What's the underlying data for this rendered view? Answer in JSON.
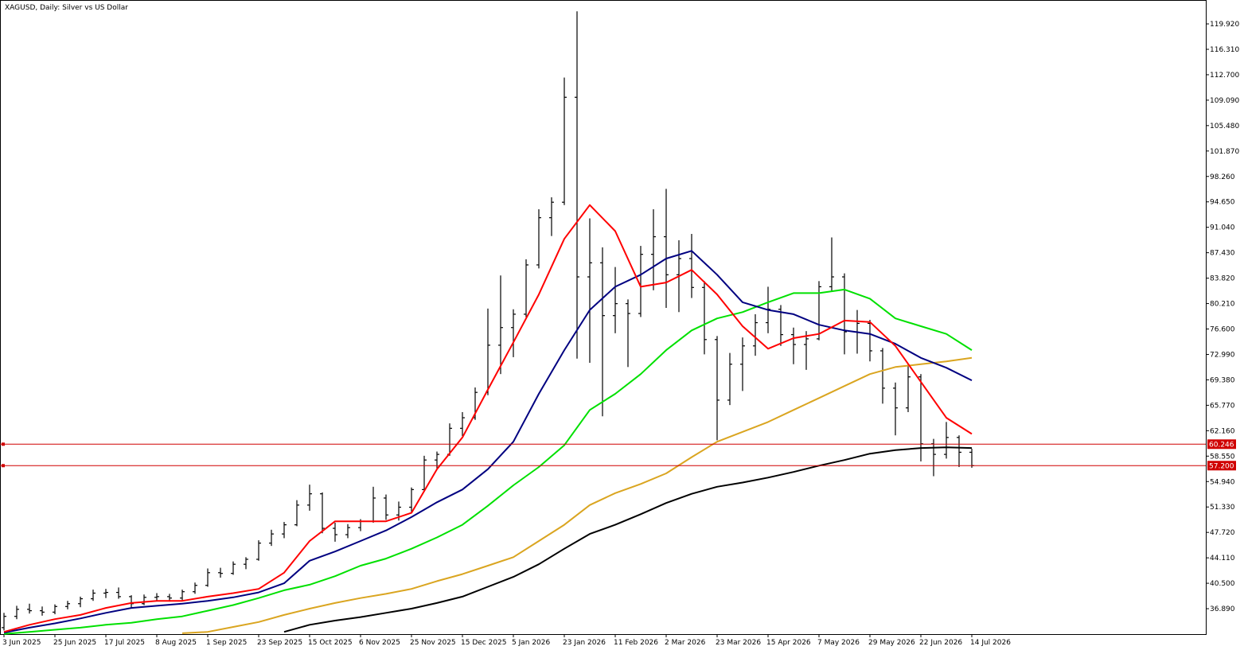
{
  "chart_data": {
    "type": "ohlc",
    "title": "XAGUSD, Daily:  Silver vs US Dollar",
    "color": "#000000",
    "ylim": [
      33.28,
      122.86
    ],
    "xlim": [
      -0.3125,
      94.375
    ],
    "yticks": [
      {
        "value": 36.89,
        "label": "36.890"
      },
      {
        "value": 40.5,
        "label": "40.500"
      },
      {
        "value": 44.11,
        "label": "44.110"
      },
      {
        "value": 47.72,
        "label": "47.720"
      },
      {
        "value": 51.33,
        "label": "51.330"
      },
      {
        "value": 54.94,
        "label": "54.940"
      },
      {
        "value": 58.55,
        "label": "58.550"
      },
      {
        "value": 62.16,
        "label": "62.160"
      },
      {
        "value": 65.77,
        "label": "65.770"
      },
      {
        "value": 69.38,
        "label": "69.380"
      },
      {
        "value": 72.99,
        "label": "72.990"
      },
      {
        "value": 76.6,
        "label": "76.600"
      },
      {
        "value": 80.21,
        "label": "80.210"
      },
      {
        "value": 83.82,
        "label": "83.820"
      },
      {
        "value": 87.43,
        "label": "87.430"
      },
      {
        "value": 91.04,
        "label": "91.040"
      },
      {
        "value": 94.65,
        "label": "94.650"
      },
      {
        "value": 98.26,
        "label": "98.260"
      },
      {
        "value": 101.87,
        "label": "101.870"
      },
      {
        "value": 105.48,
        "label": "105.480"
      },
      {
        "value": 109.09,
        "label": "109.090"
      },
      {
        "value": 112.7,
        "label": "112.700"
      },
      {
        "value": 116.31,
        "label": "116.310"
      },
      {
        "value": 119.92,
        "label": "119.920"
      }
    ],
    "xticks": [
      {
        "value": 0,
        "label": "3 Jun 2025"
      },
      {
        "value": 4,
        "label": "25 Jun 2025"
      },
      {
        "value": 8,
        "label": "17 Jul 2025"
      },
      {
        "value": 12,
        "label": "8 Aug 2025"
      },
      {
        "value": 16,
        "label": "1 Sep 2025"
      },
      {
        "value": 20,
        "label": "23 Sep 2025"
      },
      {
        "value": 24,
        "label": "15 Oct 2025"
      },
      {
        "value": 28,
        "label": "6 Nov 2025"
      },
      {
        "value": 32,
        "label": "25 Nov 2025"
      },
      {
        "value": 36,
        "label": "15 Dec 2025"
      },
      {
        "value": 40,
        "label": "5 Jan 2026"
      },
      {
        "value": 44,
        "label": "23 Jan 2026"
      },
      {
        "value": 48,
        "label": "11 Feb 2026"
      },
      {
        "value": 52,
        "label": "2 Mar 2026"
      },
      {
        "value": 56,
        "label": "23 Mar 2026"
      },
      {
        "value": 60,
        "label": "15 Apr 2026"
      },
      {
        "value": 64,
        "label": "7 May 2026"
      },
      {
        "value": 68,
        "label": "29 May 2026"
      },
      {
        "value": 72,
        "label": "22 Jun 2026"
      },
      {
        "value": 76,
        "label": "14 Jul 2026"
      }
    ],
    "ohlc": [
      [
        34.2,
        36.3,
        33.8,
        35.8
      ],
      [
        35.8,
        37.3,
        35.4,
        36.8
      ],
      [
        36.8,
        37.6,
        36.2,
        36.6
      ],
      [
        36.6,
        37.2,
        35.9,
        36.4
      ],
      [
        36.4,
        37.5,
        36.1,
        37.2
      ],
      [
        37.2,
        38.0,
        36.8,
        37.6
      ],
      [
        37.6,
        38.6,
        37.1,
        38.3
      ],
      [
        38.3,
        39.6,
        38.0,
        39.1
      ],
      [
        39.1,
        39.7,
        38.4,
        39.2
      ],
      [
        39.2,
        39.9,
        38.3,
        38.6
      ],
      [
        38.6,
        38.8,
        37.0,
        37.6
      ],
      [
        37.6,
        38.9,
        37.4,
        38.5
      ],
      [
        38.5,
        39.1,
        38.0,
        38.6
      ],
      [
        38.6,
        39.0,
        37.9,
        38.4
      ],
      [
        38.4,
        39.6,
        38.1,
        39.3
      ],
      [
        39.3,
        40.6,
        39.0,
        40.2
      ],
      [
        40.2,
        42.6,
        40.0,
        42.0
      ],
      [
        42.0,
        42.7,
        41.3,
        41.9
      ],
      [
        41.9,
        43.6,
        41.7,
        43.2
      ],
      [
        43.2,
        44.2,
        42.5,
        43.9
      ],
      [
        43.9,
        46.6,
        43.7,
        46.2
      ],
      [
        46.2,
        48.1,
        45.8,
        47.5
      ],
      [
        47.5,
        49.2,
        46.9,
        48.8
      ],
      [
        48.8,
        52.3,
        48.6,
        51.6
      ],
      [
        51.6,
        54.5,
        50.8,
        53.2
      ],
      [
        53.2,
        53.4,
        47.6,
        48.3
      ],
      [
        48.3,
        49.1,
        46.4,
        47.4
      ],
      [
        47.4,
        48.9,
        46.9,
        48.4
      ],
      [
        48.4,
        49.6,
        47.9,
        49.3
      ],
      [
        49.3,
        54.2,
        49.1,
        52.6
      ],
      [
        52.6,
        53.1,
        49.5,
        50.2
      ],
      [
        50.2,
        52.1,
        49.4,
        51.3
      ],
      [
        51.3,
        54.1,
        50.6,
        53.8
      ],
      [
        53.8,
        58.6,
        53.5,
        58.0
      ],
      [
        58.0,
        59.2,
        56.8,
        58.8
      ],
      [
        58.8,
        63.2,
        58.6,
        62.5
      ],
      [
        62.5,
        64.8,
        61.4,
        64.0
      ],
      [
        64.0,
        68.3,
        63.7,
        67.6
      ],
      [
        67.6,
        79.5,
        67.2,
        74.3
      ],
      [
        74.3,
        84.2,
        70.2,
        76.8
      ],
      [
        76.8,
        79.4,
        72.6,
        78.7
      ],
      [
        78.7,
        86.5,
        78.3,
        85.7
      ],
      [
        85.7,
        93.6,
        85.2,
        92.4
      ],
      [
        92.4,
        95.3,
        89.8,
        94.6
      ],
      [
        94.6,
        112.3,
        94.2,
        109.5
      ],
      [
        109.5,
        121.7,
        72.4,
        84.0
      ],
      [
        84.0,
        92.3,
        71.8,
        86.0
      ],
      [
        86.0,
        88.2,
        64.2,
        78.5
      ],
      [
        78.5,
        85.4,
        76.0,
        80.2
      ],
      [
        80.2,
        80.8,
        71.2,
        78.8
      ],
      [
        78.8,
        88.4,
        78.3,
        87.2
      ],
      [
        87.2,
        93.6,
        82.1,
        89.7
      ],
      [
        89.7,
        96.5,
        79.6,
        84.3
      ],
      [
        84.3,
        89.2,
        79.0,
        86.6
      ],
      [
        86.6,
        90.1,
        81.0,
        82.5
      ],
      [
        82.5,
        83.4,
        73.0,
        75.1
      ],
      [
        75.1,
        75.6,
        60.8,
        66.5
      ],
      [
        66.5,
        73.2,
        65.8,
        71.6
      ],
      [
        71.6,
        75.4,
        67.8,
        74.2
      ],
      [
        74.2,
        78.7,
        72.8,
        77.5
      ],
      [
        77.5,
        82.6,
        76.0,
        79.4
      ],
      [
        79.4,
        80.0,
        74.2,
        75.8
      ],
      [
        75.8,
        76.8,
        71.6,
        74.4
      ],
      [
        74.4,
        76.3,
        70.8,
        75.2
      ],
      [
        75.2,
        83.4,
        75.0,
        82.6
      ],
      [
        82.6,
        89.6,
        81.9,
        84.0
      ],
      [
        84.0,
        84.5,
        73.0,
        76.2
      ],
      [
        76.2,
        79.3,
        73.1,
        77.4
      ],
      [
        77.4,
        77.9,
        72.0,
        73.5
      ],
      [
        73.5,
        73.9,
        66.0,
        68.2
      ],
      [
        68.2,
        69.0,
        61.5,
        65.4
      ],
      [
        65.4,
        71.6,
        64.8,
        69.8
      ],
      [
        69.8,
        70.2,
        57.8,
        60.3
      ],
      [
        60.3,
        61.0,
        55.7,
        58.8
      ],
      [
        58.8,
        63.4,
        58.2,
        61.2
      ],
      [
        61.2,
        61.5,
        57.0,
        59.1
      ],
      [
        59.1,
        59.6,
        56.9,
        57.2
      ]
    ],
    "ma_x": [
      0,
      2,
      4,
      6,
      8,
      10,
      12,
      14,
      16,
      18,
      20,
      22,
      24,
      26,
      28,
      30,
      32,
      34,
      36,
      38,
      40,
      42,
      44,
      46,
      48,
      50,
      52,
      54,
      56,
      58,
      60,
      62,
      64,
      66,
      68,
      70,
      72,
      74,
      76
    ],
    "series": [
      {
        "color": "#000000",
        "values": [
          null,
          null,
          null,
          null,
          null,
          null,
          null,
          null,
          null,
          null,
          null,
          33.6,
          34.6,
          35.2,
          35.7,
          36.3,
          36.9,
          37.7,
          38.6,
          40,
          41.4,
          43.2,
          45.4,
          47.5,
          48.8,
          50.3,
          51.9,
          53.2,
          54.2,
          54.8,
          55.5,
          56.3,
          57.2,
          58,
          58.9,
          59.4,
          59.7,
          59.8,
          59.7
        ]
      },
      {
        "color": "#daa520",
        "values": [
          null,
          null,
          null,
          null,
          null,
          null,
          null,
          33.4,
          33.6,
          34.3,
          35,
          36,
          36.9,
          37.7,
          38.4,
          39,
          39.7,
          40.8,
          41.8,
          43,
          44.2,
          46.5,
          48.8,
          51.6,
          53.3,
          54.6,
          56.1,
          58.4,
          60.6,
          62,
          63.4,
          65.1,
          66.8,
          68.5,
          70.2,
          71.2,
          71.6,
          72,
          72.5
        ]
      },
      {
        "color": "#00e000",
        "values": [
          33.3,
          33.6,
          33.9,
          34.2,
          34.6,
          34.9,
          35.4,
          35.8,
          36.6,
          37.4,
          38.4,
          39.5,
          40.3,
          41.5,
          43,
          44,
          45.4,
          47,
          48.8,
          51.5,
          54.4,
          57,
          60.1,
          65.1,
          67.4,
          70.2,
          73.6,
          76.4,
          78.1,
          79,
          80.4,
          81.7,
          81.7,
          82.2,
          80.9,
          78.1,
          77,
          75.9,
          73.6
        ]
      },
      {
        "color": "#000080",
        "values": [
          33.5,
          34.2,
          34.8,
          35.5,
          36.3,
          37,
          37.3,
          37.6,
          38,
          38.5,
          39.2,
          40.5,
          43.7,
          45,
          46.5,
          48,
          49.9,
          52,
          53.8,
          56.7,
          60.6,
          67.4,
          73.6,
          79.3,
          82.6,
          84.3,
          86.6,
          87.7,
          84.3,
          80.4,
          79.3,
          78.7,
          77.2,
          76.4,
          75.9,
          74.5,
          72.5,
          71.1,
          69.3
        ]
      },
      {
        "color": "#ff0000",
        "values": [
          33.6,
          34.6,
          35.4,
          36,
          37,
          37.7,
          38,
          38,
          38.6,
          39.1,
          39.7,
          42,
          46.5,
          49.3,
          49.3,
          49.3,
          50.5,
          56.7,
          61.2,
          68,
          74.7,
          81.5,
          89.4,
          94.2,
          90.5,
          82.6,
          83.2,
          85,
          81.5,
          77,
          73.8,
          75.3,
          75.9,
          77.8,
          77.6,
          74.2,
          69.1,
          64,
          61.7
        ]
      }
    ],
    "hlines": [
      {
        "value": 60.246,
        "label": "60.246"
      },
      {
        "value": 57.2,
        "label": "57.200"
      }
    ],
    "hline_color": "#d00000"
  }
}
